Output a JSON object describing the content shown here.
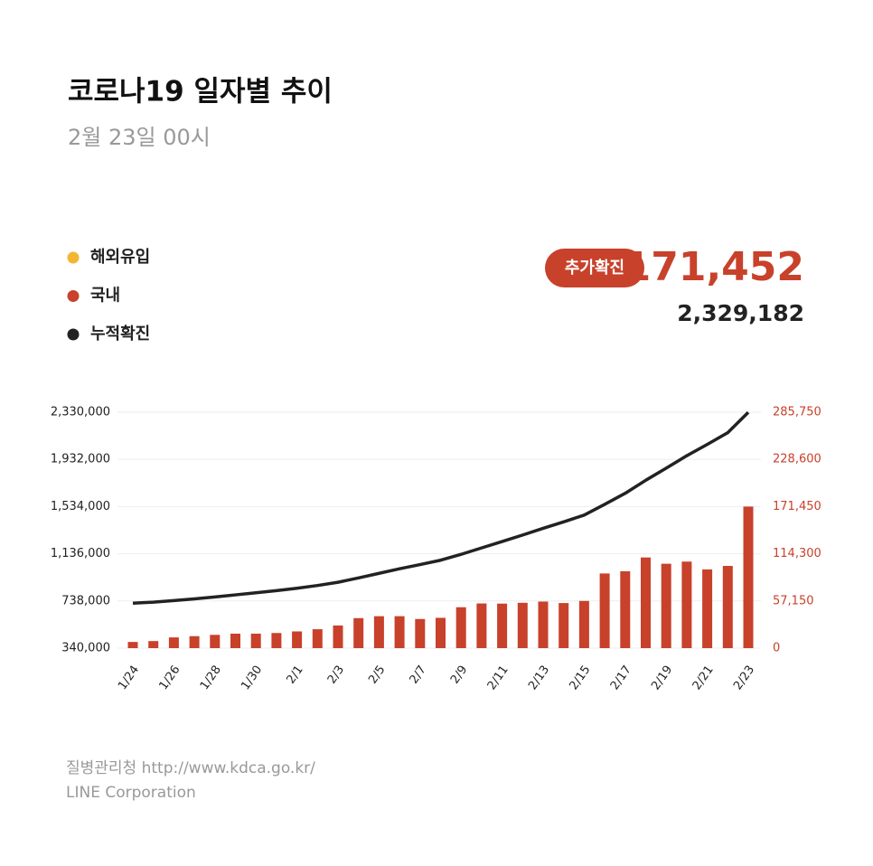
{
  "header": {
    "title": "코로나19 일자별 추이",
    "subtitle": "2월 23일 00시"
  },
  "headline": {
    "badge": "추가확진",
    "new": "171,452",
    "total": "2,329,182"
  },
  "footer": {
    "source": "질병관리청  http://www.kdca.go.kr/",
    "company": "LINE Corporation"
  },
  "chart_data": {
    "type": "bar-line",
    "legend": [
      {
        "name": "해외유입",
        "color": "#f2b632"
      },
      {
        "name": "국내",
        "color": "#c8412b"
      },
      {
        "name": "누적확진",
        "color": "#222222"
      }
    ],
    "categories": [
      "1/24",
      null,
      "1/26",
      null,
      "1/28",
      null,
      "1/30",
      null,
      "2/1",
      null,
      "2/3",
      null,
      "2/5",
      null,
      "2/7",
      null,
      "2/9",
      null,
      "2/11",
      null,
      "2/13",
      null,
      "2/15",
      null,
      "2/17",
      null,
      "2/19",
      null,
      "2/21",
      null,
      "2/23"
    ],
    "series": [
      {
        "type": "bar",
        "axis": "y2",
        "color": "#c8412b",
        "values": [
          7513,
          8571,
          13012,
          14518,
          16096,
          17542,
          17528,
          18342,
          20270,
          22907,
          27443,
          36362,
          38691,
          38689,
          35286,
          36719,
          49567,
          54122,
          53926,
          54941,
          56431,
          54619,
          57177,
          90443,
          93135,
          109831,
          102211,
          104829,
          95362,
          99573,
          171452
        ]
      },
      {
        "type": "line",
        "axis": "y",
        "color": "#222222",
        "values": [
          719587,
          728158,
          741170,
          755688,
          771784,
          789326,
          806854,
          825196,
          845466,
          868373,
          895816,
          932178,
          970869,
          1009558,
          1044844,
          1081563,
          1131130,
          1185252,
          1239178,
          1294119,
          1350550,
          1405169,
          1462346,
          1552789,
          1645924,
          1755755,
          1857966,
          1962795,
          2058157,
          2157730,
          2329182
        ]
      }
    ],
    "ylim": [
      340000,
      2330000
    ],
    "yticks": [
      {
        "value": 340000,
        "label": "340,000"
      },
      {
        "value": 738000,
        "label": "738,000"
      },
      {
        "value": 1136000,
        "label": "1,136,000"
      },
      {
        "value": 1534000,
        "label": "1,534,000"
      },
      {
        "value": 1932000,
        "label": "1,932,000"
      },
      {
        "value": 2330000,
        "label": "2,330,000"
      }
    ],
    "y2lim": [
      0,
      285750
    ],
    "y2ticks": [
      0,
      {
        "value": 57150,
        "label": "57,150"
      },
      {
        "value": 114300,
        "label": "114,300"
      },
      {
        "value": 171450,
        "label": "171,450"
      },
      {
        "value": 228600,
        "label": "228,600"
      },
      {
        "value": 285750,
        "label": "285,750"
      }
    ],
    "grid": true
  }
}
